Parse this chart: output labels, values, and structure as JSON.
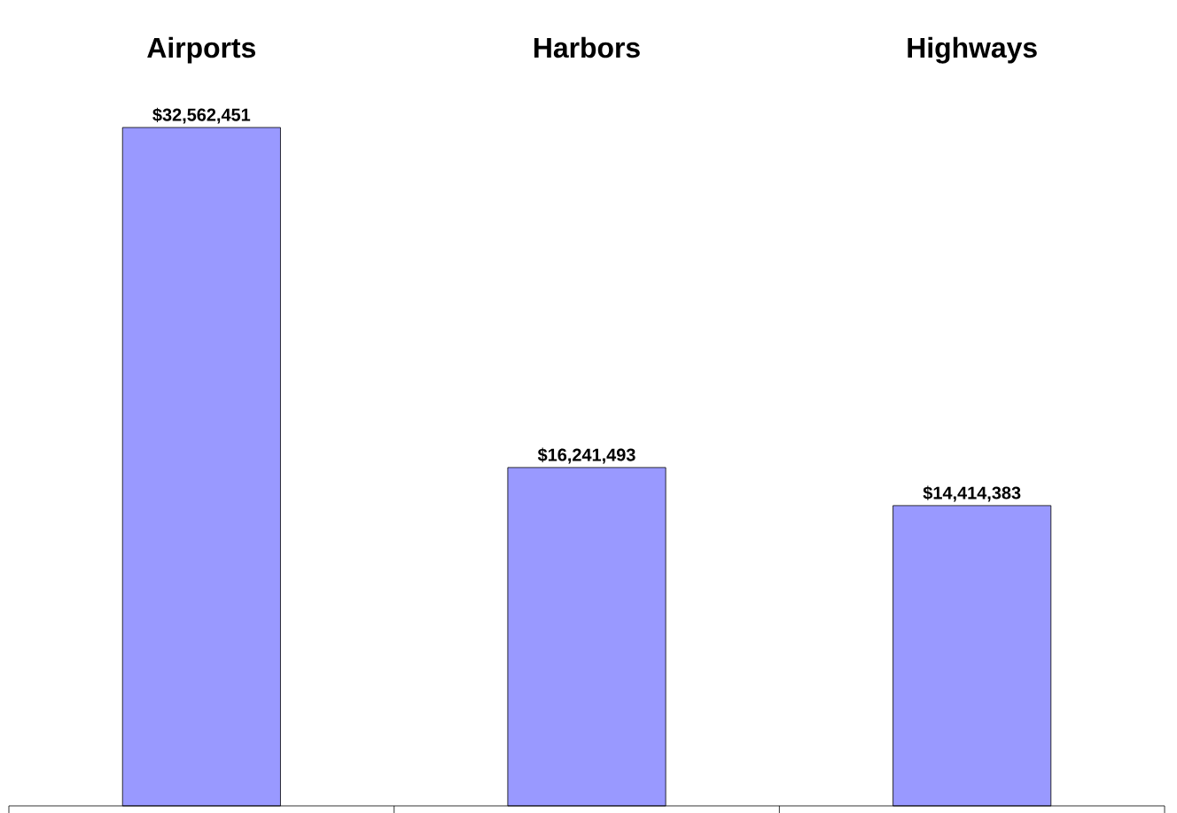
{
  "chart_data": {
    "type": "bar",
    "categories": [
      "Airports",
      "Harbors",
      "Highways"
    ],
    "values": [
      32562451,
      16241493,
      14414383
    ],
    "value_labels": [
      "$32,562,451",
      "$16,241,493",
      "$14,414,383"
    ],
    "color": "#9999ff"
  }
}
